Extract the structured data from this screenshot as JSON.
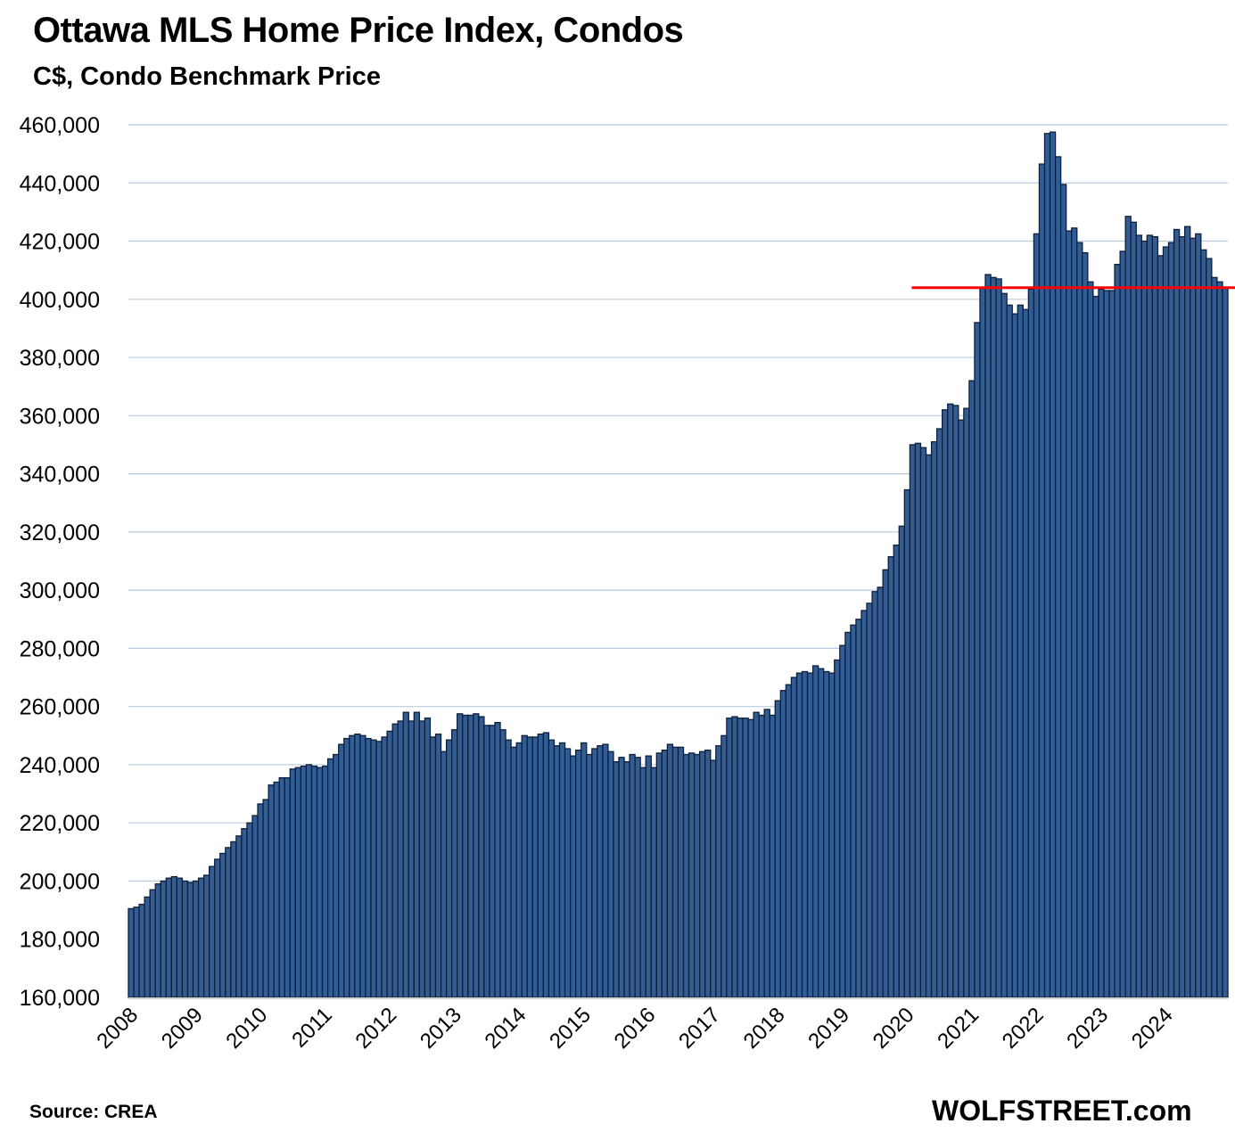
{
  "chart_data": {
    "type": "bar",
    "title": "Ottawa MLS Home Price Index, Condos",
    "subtitle": "C$, Condo Benchmark Price",
    "xlabel": "",
    "ylabel": "C$, Condo Benchmark Price",
    "ylim": [
      160000,
      460000
    ],
    "yticks": [
      160000,
      180000,
      200000,
      220000,
      240000,
      260000,
      280000,
      300000,
      320000,
      340000,
      360000,
      380000,
      400000,
      420000,
      440000,
      460000
    ],
    "ytick_labels": [
      "160,000",
      "180,000",
      "200,000",
      "220,000",
      "240,000",
      "260,000",
      "280,000",
      "300,000",
      "320,000",
      "340,000",
      "360,000",
      "380,000",
      "400,000",
      "420,000",
      "440,000",
      "460,000"
    ],
    "xtick_labels": [
      "2008",
      "2009",
      "2010",
      "2011",
      "2012",
      "2013",
      "2014",
      "2015",
      "2016",
      "2017",
      "2018",
      "2019",
      "2020",
      "2021",
      "2022",
      "2023",
      "2024"
    ],
    "grid": true,
    "frequency": "monthly",
    "start": "2008-01",
    "bar_color": "#325d94",
    "bar_edge_color": "#0e1f3a",
    "grid_color": "#b8cbdc",
    "reference_line": {
      "value": 404000,
      "from": "2020-04",
      "color": "#ff0000"
    },
    "series": [
      {
        "name": "Condo Benchmark Price",
        "values": [
          190500,
          191000,
          192000,
          194500,
          197000,
          199000,
          200000,
          201000,
          201500,
          201000,
          200000,
          199500,
          200000,
          201000,
          202000,
          205000,
          207500,
          209500,
          211500,
          213500,
          215500,
          218000,
          220000,
          222500,
          226500,
          228000,
          233000,
          234000,
          235500,
          235500,
          238500,
          239000,
          239500,
          240000,
          239500,
          239000,
          239500,
          242000,
          243500,
          247000,
          249000,
          250000,
          250500,
          250000,
          249000,
          248500,
          248000,
          249500,
          251500,
          254000,
          255000,
          258000,
          255000,
          258000,
          255000,
          256000,
          249500,
          250500,
          244500,
          248500,
          252000,
          257500,
          257000,
          257000,
          257500,
          256500,
          253500,
          253500,
          254500,
          252000,
          248500,
          246000,
          247500,
          250000,
          249500,
          249500,
          250500,
          251000,
          248500,
          246500,
          247500,
          245500,
          243000,
          245000,
          247500,
          243500,
          245500,
          246500,
          247000,
          244500,
          241000,
          242500,
          241000,
          243500,
          242500,
          239000,
          243000,
          239000,
          244000,
          245000,
          247000,
          246000,
          246000,
          243500,
          244000,
          243500,
          244500,
          245000,
          241500,
          246500,
          250000,
          256000,
          256500,
          256000,
          256000,
          255500,
          258000,
          257000,
          259000,
          257000,
          262000,
          265500,
          267500,
          270000,
          271500,
          272000,
          271500,
          274000,
          273000,
          272000,
          271500,
          276000,
          281000,
          285500,
          288000,
          290000,
          293000,
          295500,
          299500,
          301000,
          307000,
          311500,
          315500,
          322000,
          334500,
          350000,
          350500,
          349000,
          346500,
          351000,
          355500,
          362000,
          364000,
          363500,
          358500,
          362500,
          372000,
          392000,
          404000,
          408500,
          407500,
          407000,
          402000,
          398000,
          395000,
          398000,
          396500,
          403500,
          422500,
          446500,
          457000,
          457500,
          449000,
          439500,
          423500,
          424500,
          419500,
          416000,
          406000,
          401000,
          403500,
          403000,
          403000,
          412000,
          416500,
          428500,
          426500,
          422000,
          420000,
          422000,
          421500,
          415000,
          418000,
          419500,
          424000,
          421500,
          425000,
          421000,
          422500,
          417000,
          414000,
          407500,
          406000,
          404000
        ]
      }
    ]
  },
  "footer": {
    "source": "Source: CREA",
    "watermark": "WOLFSTREET.com"
  }
}
